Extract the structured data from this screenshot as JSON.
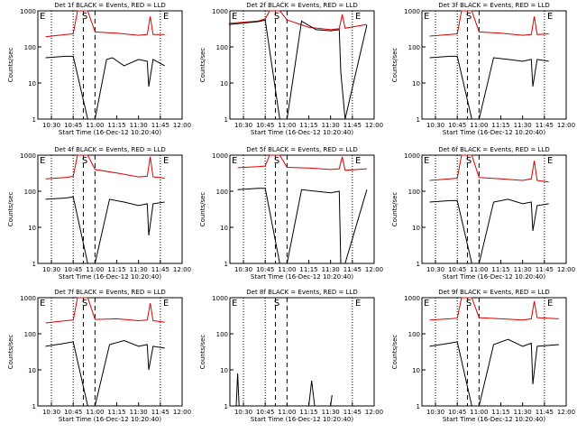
{
  "colors": {
    "events": "#000000",
    "lld": "#dd0000",
    "axis": "#000000",
    "background": "#ffffff"
  },
  "xlabel": "Start Time (16-Dec-12 10:20:40)",
  "ylabel": "Counts/sec",
  "x_ticks": [
    "10:30",
    "10:45",
    "11:00",
    "11:15",
    "11:30",
    "11:45",
    "12:00"
  ],
  "y_ticks": [
    "1",
    "10",
    "100",
    "1000"
  ],
  "marker_labels": {
    "start": "E",
    "mid": "S",
    "end": "E"
  },
  "chart_data": [
    {
      "type": "line",
      "title": "Det 1f BLACK = Events, RED = LLD",
      "xlim": [
        "10:20:40",
        "12:00"
      ],
      "ylim": [
        1,
        1000
      ],
      "yscale": "log",
      "series": [
        {
          "name": "LLD",
          "x": [
            "10:26",
            "10:40",
            "10:45",
            "10:48",
            "10:55",
            "11:00",
            "11:15",
            "11:30",
            "11:36",
            "11:38",
            "11:40",
            "11:48"
          ],
          "y": [
            190,
            220,
            230,
            1000,
            1000,
            260,
            240,
            210,
            220,
            700,
            220,
            220
          ]
        },
        {
          "name": "Events",
          "x": [
            "10:26",
            "10:40",
            "10:45",
            "10:55",
            "11:00",
            "11:08",
            "11:12",
            "11:20",
            "11:30",
            "11:36",
            "11:37",
            "11:40",
            "11:48"
          ],
          "y": [
            50,
            55,
            55,
            1,
            1,
            45,
            50,
            30,
            45,
            40,
            8,
            45,
            30
          ]
        }
      ]
    },
    {
      "type": "line",
      "title": "Det 2f BLACK = Events, RED = LLD",
      "xlim": [
        "10:20:40",
        "12:00"
      ],
      "ylim": [
        1,
        1000
      ],
      "yscale": "log",
      "series": [
        {
          "name": "LLD",
          "x": [
            "10:20",
            "10:40",
            "10:45",
            "10:48",
            "10:55",
            "11:00",
            "11:15",
            "11:30",
            "11:36",
            "11:38",
            "11:40",
            "11:55"
          ],
          "y": [
            450,
            520,
            600,
            1000,
            1000,
            560,
            350,
            300,
            320,
            800,
            330,
            420
          ]
        },
        {
          "name": "Events",
          "x": [
            "10:20",
            "10:40",
            "10:45",
            "10:55",
            "11:00",
            "11:10",
            "11:20",
            "11:30",
            "11:36",
            "11:37",
            "11:40",
            "11:55"
          ],
          "y": [
            420,
            500,
            550,
            1,
            1,
            520,
            300,
            280,
            300,
            20,
            1,
            400
          ]
        }
      ]
    },
    {
      "type": "line",
      "title": "Det 3f BLACK = Events, RED = LLD",
      "xlim": [
        "10:20:40",
        "12:00"
      ],
      "ylim": [
        1,
        1000
      ],
      "yscale": "log",
      "series": [
        {
          "name": "LLD",
          "x": [
            "10:26",
            "10:40",
            "10:45",
            "10:48",
            "10:55",
            "11:00",
            "11:15",
            "11:30",
            "11:36",
            "11:38",
            "11:40",
            "11:48"
          ],
          "y": [
            200,
            220,
            230,
            1000,
            1000,
            260,
            240,
            210,
            220,
            700,
            220,
            230
          ]
        },
        {
          "name": "Events",
          "x": [
            "10:26",
            "10:40",
            "10:45",
            "10:55",
            "11:00",
            "11:10",
            "11:20",
            "11:30",
            "11:36",
            "11:37",
            "11:40",
            "11:48"
          ],
          "y": [
            50,
            55,
            55,
            1,
            1,
            50,
            45,
            40,
            45,
            8,
            45,
            40
          ]
        }
      ]
    },
    {
      "type": "line",
      "title": "Det 4f BLACK = Events, RED = LLD",
      "xlim": [
        "10:20:40",
        "12:00"
      ],
      "ylim": [
        1,
        1000
      ],
      "yscale": "log",
      "series": [
        {
          "name": "LLD",
          "x": [
            "10:26",
            "10:40",
            "10:45",
            "10:48",
            "10:55",
            "11:00",
            "11:15",
            "11:30",
            "11:36",
            "11:38",
            "11:40",
            "11:48"
          ],
          "y": [
            220,
            240,
            260,
            1000,
            1000,
            400,
            320,
            250,
            260,
            900,
            250,
            230
          ]
        },
        {
          "name": "Events",
          "x": [
            "10:26",
            "10:40",
            "10:45",
            "10:55",
            "11:00",
            "11:10",
            "11:20",
            "11:30",
            "11:36",
            "11:37",
            "11:40",
            "11:48"
          ],
          "y": [
            60,
            65,
            70,
            1,
            1,
            60,
            50,
            40,
            45,
            6,
            45,
            50
          ]
        }
      ]
    },
    {
      "type": "line",
      "title": "Det 5f BLACK = Events, RED = LLD",
      "xlim": [
        "10:20:40",
        "12:00"
      ],
      "ylim": [
        1,
        1000
      ],
      "yscale": "log",
      "series": [
        {
          "name": "LLD",
          "x": [
            "10:26",
            "10:40",
            "10:45",
            "10:48",
            "10:55",
            "11:00",
            "11:15",
            "11:30",
            "11:36",
            "11:38",
            "11:40",
            "11:55"
          ],
          "y": [
            450,
            480,
            500,
            1000,
            1000,
            460,
            440,
            400,
            420,
            900,
            380,
            420
          ]
        },
        {
          "name": "Events",
          "x": [
            "10:26",
            "10:40",
            "10:45",
            "10:55",
            "11:00",
            "11:10",
            "11:20",
            "11:30",
            "11:36",
            "11:37",
            "11:40",
            "11:55"
          ],
          "y": [
            110,
            120,
            120,
            1,
            1,
            110,
            100,
            90,
            100,
            1,
            1,
            110
          ]
        }
      ]
    },
    {
      "type": "line",
      "title": "Det 6f BLACK = Events, RED = LLD",
      "xlim": [
        "10:20:40",
        "12:00"
      ],
      "ylim": [
        1,
        1000
      ],
      "yscale": "log",
      "series": [
        {
          "name": "LLD",
          "x": [
            "10:26",
            "10:40",
            "10:45",
            "10:48",
            "10:55",
            "11:00",
            "11:15",
            "11:30",
            "11:36",
            "11:38",
            "11:40",
            "11:48"
          ],
          "y": [
            200,
            220,
            230,
            1000,
            1000,
            240,
            220,
            200,
            220,
            700,
            200,
            180
          ]
        },
        {
          "name": "Events",
          "x": [
            "10:26",
            "10:40",
            "10:45",
            "10:55",
            "11:00",
            "11:10",
            "11:20",
            "11:30",
            "11:36",
            "11:37",
            "11:40",
            "11:48"
          ],
          "y": [
            50,
            55,
            55,
            1,
            1,
            50,
            60,
            45,
            50,
            8,
            40,
            45
          ]
        }
      ]
    },
    {
      "type": "line",
      "title": "Det 7f BLACK = Events, RED = LLD",
      "xlim": [
        "10:20:40",
        "12:00"
      ],
      "ylim": [
        1,
        1000
      ],
      "yscale": "log",
      "series": [
        {
          "name": "LLD",
          "x": [
            "10:26",
            "10:40",
            "10:45",
            "10:48",
            "10:55",
            "11:00",
            "11:15",
            "11:30",
            "11:36",
            "11:38",
            "11:40",
            "11:48"
          ],
          "y": [
            200,
            230,
            240,
            1000,
            1000,
            250,
            260,
            230,
            240,
            700,
            230,
            210
          ]
        },
        {
          "name": "Events",
          "x": [
            "10:26",
            "10:40",
            "10:45",
            "10:55",
            "11:00",
            "11:10",
            "11:20",
            "11:30",
            "11:36",
            "11:37",
            "11:40",
            "11:48"
          ],
          "y": [
            45,
            55,
            60,
            1,
            1,
            50,
            65,
            45,
            50,
            10,
            45,
            40
          ]
        }
      ]
    },
    {
      "type": "line",
      "title": "Det 8f BLACK = Events, RED = LLD",
      "xlim": [
        "10:20:40",
        "12:00"
      ],
      "ylim": [
        1,
        1000
      ],
      "yscale": "log",
      "series": [
        {
          "name": "Events",
          "x": [
            "10:25",
            "10:26",
            "10:27",
            "11:15",
            "11:17",
            "11:19",
            "11:30",
            "11:31"
          ],
          "y": [
            1,
            8,
            1,
            1,
            5,
            1,
            1,
            2
          ]
        }
      ]
    },
    {
      "type": "line",
      "title": "Det 9f BLACK = Events, RED = LLD",
      "xlim": [
        "10:20:40",
        "12:00"
      ],
      "ylim": [
        1,
        1000
      ],
      "yscale": "log",
      "series": [
        {
          "name": "LLD",
          "x": [
            "10:26",
            "10:40",
            "10:45",
            "10:48",
            "10:55",
            "11:00",
            "11:15",
            "11:30",
            "11:36",
            "11:38",
            "11:40",
            "11:55"
          ],
          "y": [
            240,
            260,
            270,
            1000,
            1000,
            280,
            260,
            240,
            260,
            800,
            280,
            260
          ]
        },
        {
          "name": "Events",
          "x": [
            "10:26",
            "10:40",
            "10:45",
            "10:55",
            "11:00",
            "11:10",
            "11:20",
            "11:30",
            "11:36",
            "11:37",
            "11:40",
            "11:55"
          ],
          "y": [
            45,
            55,
            60,
            1,
            1,
            50,
            70,
            45,
            55,
            4,
            45,
            50
          ]
        }
      ]
    }
  ]
}
